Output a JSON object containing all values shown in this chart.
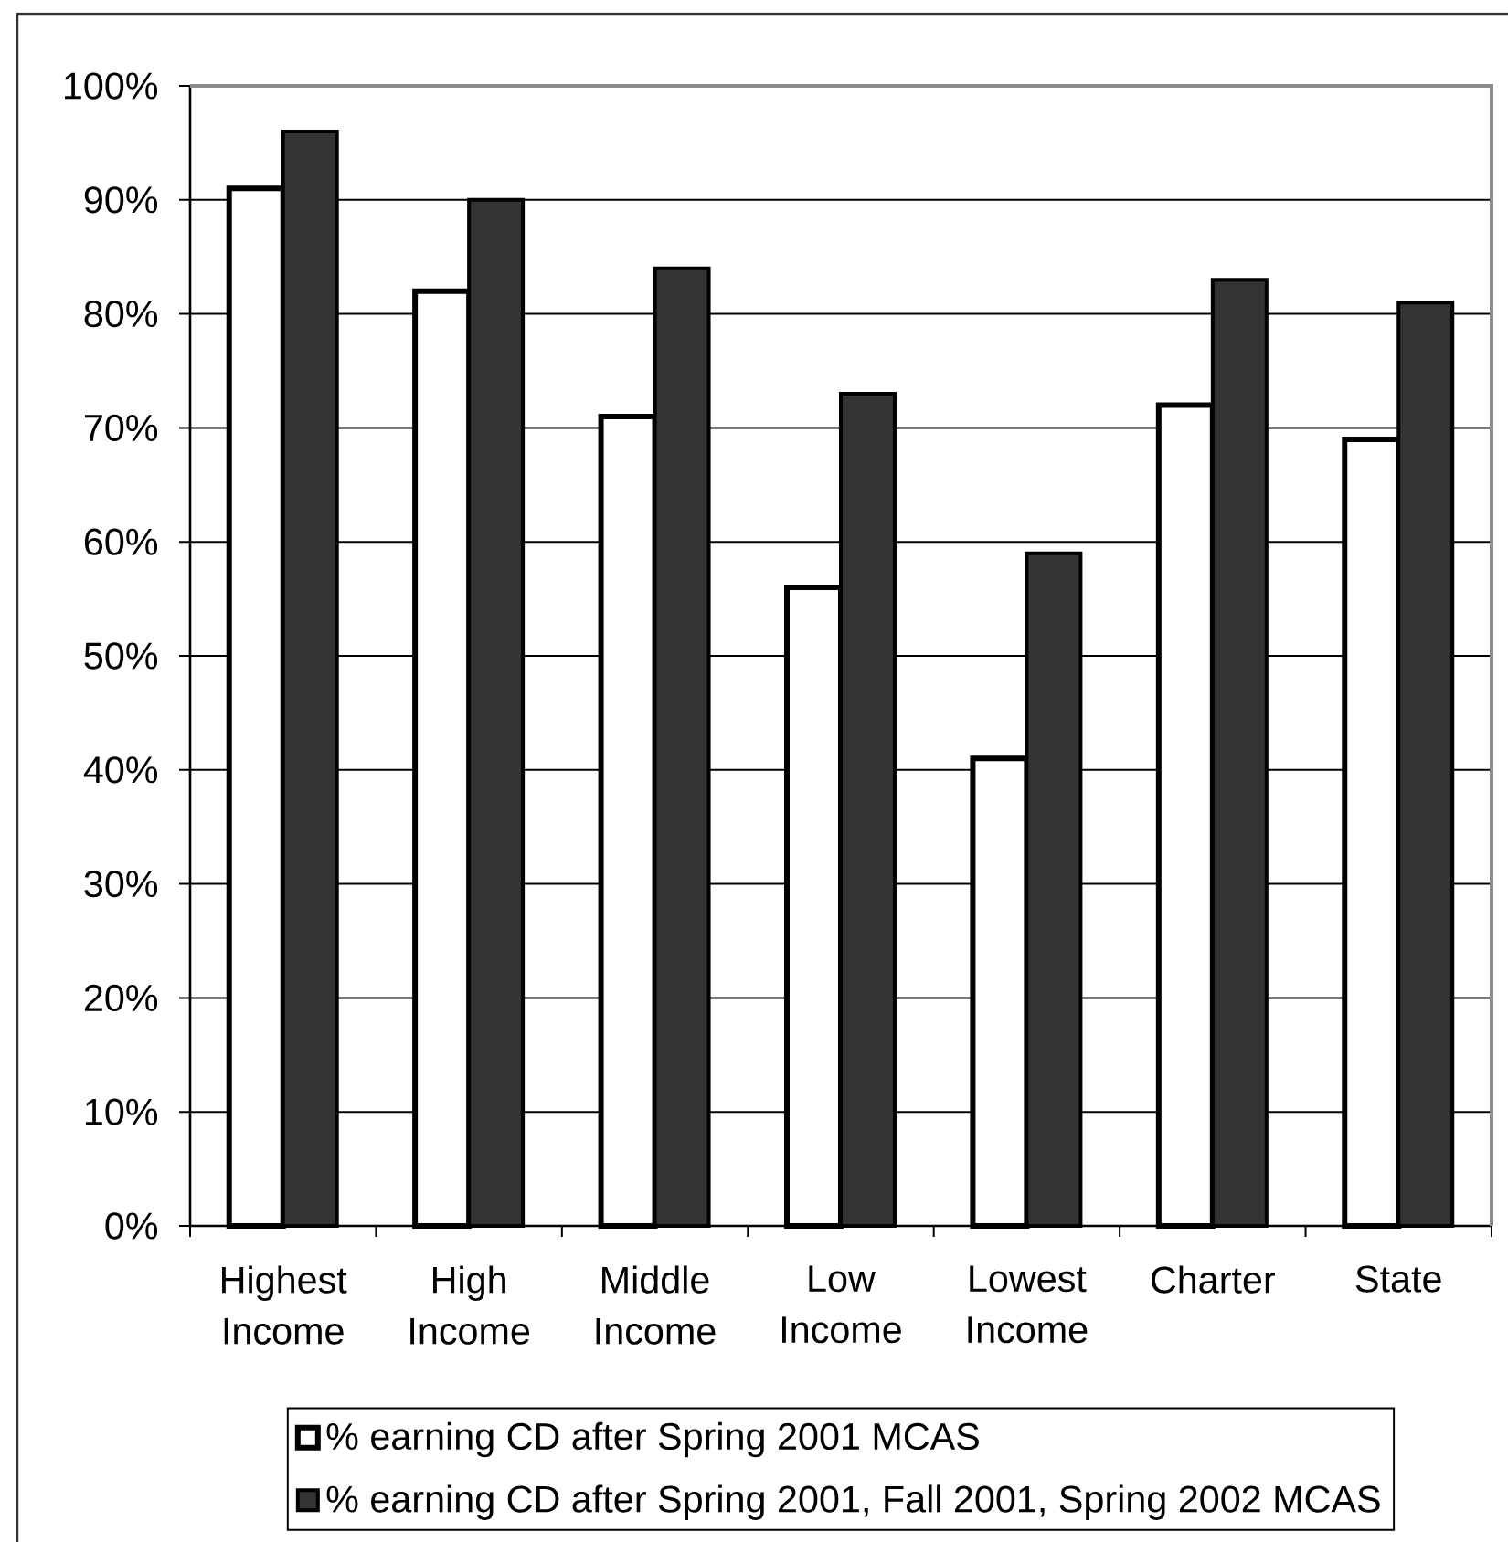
{
  "chart_data": {
    "type": "bar",
    "categories": [
      "Highest Income",
      "High Income",
      "Middle Income",
      "Low Income",
      "Lowest Income",
      "Charter",
      "State"
    ],
    "series": [
      {
        "name": "% earning CD after Spring 2001 MCAS",
        "color": "#ffffff",
        "values": [
          91,
          82,
          71,
          56,
          41,
          72,
          69
        ]
      },
      {
        "name": "% earning CD after Spring 2001, Fall 2001, Spring 2002 MCAS",
        "color": "#333333",
        "values": [
          96,
          90,
          84,
          73,
          59,
          83,
          81
        ]
      }
    ],
    "ylim": [
      0,
      100
    ],
    "yticks": [
      {
        "value": 0,
        "label": "0%"
      },
      {
        "value": 10,
        "label": "10%"
      },
      {
        "value": 20,
        "label": "20%"
      },
      {
        "value": 30,
        "label": "30%"
      },
      {
        "value": 40,
        "label": "40%"
      },
      {
        "value": 50,
        "label": "50%"
      },
      {
        "value": 60,
        "label": "60%"
      },
      {
        "value": 70,
        "label": "70%"
      },
      {
        "value": 80,
        "label": "80%"
      },
      {
        "value": 90,
        "label": "90%"
      },
      {
        "value": 100,
        "label": "100%"
      }
    ],
    "grid": "y",
    "legend": "bottom"
  }
}
